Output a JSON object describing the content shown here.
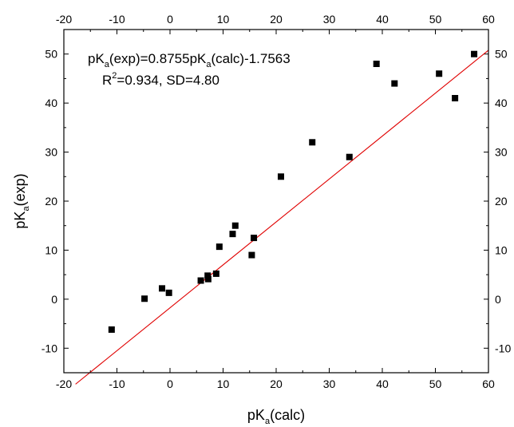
{
  "chart_data": {
    "type": "scatter",
    "xlabel": {
      "main": "pK",
      "sub": "a",
      "rest": "(calc)"
    },
    "ylabel": {
      "main": "pK",
      "sub": "a",
      "rest": "(exp)"
    },
    "xlim": [
      -20,
      60
    ],
    "ylim": [
      -15,
      55
    ],
    "xticks": [
      -20,
      -10,
      0,
      10,
      20,
      30,
      40,
      50,
      60
    ],
    "yticks": [
      -10,
      0,
      10,
      20,
      30,
      40,
      50
    ],
    "xticklabels": [
      "-20",
      "-10",
      "0",
      "10",
      "20",
      "30",
      "40",
      "50",
      "60"
    ],
    "yticklabels": [
      "-10",
      "0",
      "10",
      "20",
      "30",
      "40",
      "50"
    ],
    "mirror_axes": true,
    "grid": false,
    "equation": {
      "p1": "pK",
      "s1": "a",
      "p2": "(exp)=0.8755pK",
      "s2": "a",
      "p3": "(calc)-1.7563"
    },
    "stats": {
      "p1": "R",
      "sup": "2",
      "p2": "=0.934, SD=4.80"
    },
    "fit_line": {
      "slope": 0.8755,
      "intercept": -1.7563,
      "x_range": [
        -17.8,
        60
      ],
      "color": "#e00000"
    },
    "marker_color": "#000000",
    "points": [
      {
        "x": -11.0,
        "y": -6.2
      },
      {
        "x": -4.8,
        "y": 0.1
      },
      {
        "x": -1.5,
        "y": 2.2
      },
      {
        "x": -0.2,
        "y": 1.3
      },
      {
        "x": 5.8,
        "y": 3.8
      },
      {
        "x": 7.1,
        "y": 4.8
      },
      {
        "x": 7.2,
        "y": 4.1
      },
      {
        "x": 8.7,
        "y": 5.2
      },
      {
        "x": 9.3,
        "y": 10.7
      },
      {
        "x": 11.8,
        "y": 13.3
      },
      {
        "x": 12.3,
        "y": 15.0
      },
      {
        "x": 15.4,
        "y": 9.0
      },
      {
        "x": 15.8,
        "y": 12.5
      },
      {
        "x": 20.9,
        "y": 25.0
      },
      {
        "x": 26.8,
        "y": 32.0
      },
      {
        "x": 33.8,
        "y": 29.0
      },
      {
        "x": 38.9,
        "y": 48.0
      },
      {
        "x": 42.3,
        "y": 44.0
      },
      {
        "x": 50.7,
        "y": 46.0
      },
      {
        "x": 53.7,
        "y": 41.0
      },
      {
        "x": 57.3,
        "y": 50.0
      }
    ]
  }
}
